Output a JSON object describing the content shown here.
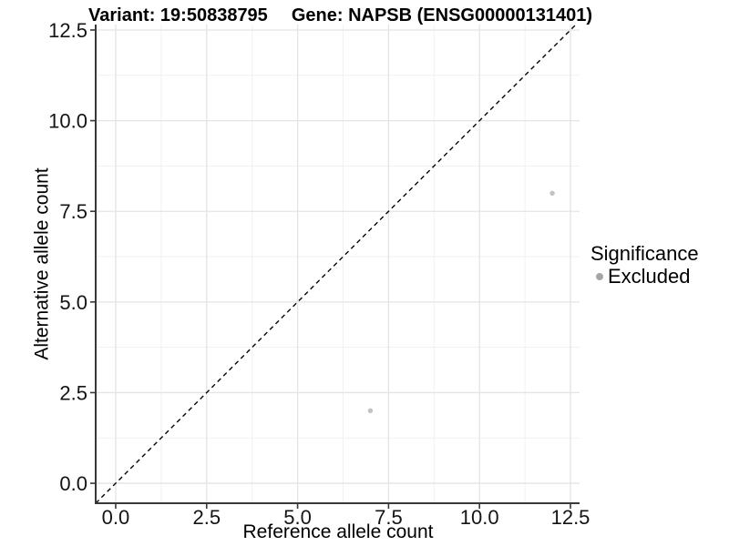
{
  "figure": {
    "title_left": "Variant: 19:50838795",
    "title_right": "Gene: NAPSB (ENSG00000131401)"
  },
  "axes": {
    "x_label": "Reference allele count",
    "y_label": "Alternative allele count"
  },
  "legend": {
    "title": "Significance",
    "items": [
      {
        "label": "Excluded",
        "marker": "circle",
        "color": "#a6a6a6"
      }
    ]
  },
  "colors": {
    "background": "#ffffff",
    "grid_major": "#e4e4e4",
    "grid_minor": "#f1f1f1",
    "axis_line": "#383838",
    "tick_text": "#141414",
    "dashed_line": "#050505",
    "legend_point": "#a6a6a6",
    "data_point": "#c2c2c2"
  },
  "chart_data": {
    "type": "scatter",
    "title": "Variant: 19:50838795 / Gene: NAPSB (ENSG00000131401)",
    "xlabel": "Reference allele count",
    "ylabel": "Alternative allele count",
    "xlim": [
      -0.55,
      12.75
    ],
    "ylim": [
      -0.55,
      12.65
    ],
    "x_ticks": [
      0,
      2.5,
      5,
      7.5,
      10,
      12.5
    ],
    "x_tick_labels": [
      "0.0",
      "2.5",
      "5.0",
      "7.5",
      "10.0",
      "12.5"
    ],
    "y_ticks": [
      0,
      2.5,
      5,
      7.5,
      10,
      12.5
    ],
    "y_tick_labels": [
      "0.0",
      "2.5",
      "5.0",
      "7.5",
      "10.0",
      "12.5"
    ],
    "x_minor_ticks": [
      1.25,
      3.75,
      6.25,
      8.75,
      11.25
    ],
    "y_minor_ticks": [
      1.25,
      3.75,
      6.25,
      8.75,
      11.25
    ],
    "grid": "major+minor",
    "legend_position": "right-center",
    "series": [
      {
        "name": "Excluded",
        "color": "#c2c2c2",
        "points": [
          {
            "x": 7,
            "y": 2
          },
          {
            "x": 12,
            "y": 8
          }
        ]
      }
    ],
    "reference_line": {
      "kind": "identity y=x",
      "style": "dashed",
      "color": "#050505"
    }
  }
}
